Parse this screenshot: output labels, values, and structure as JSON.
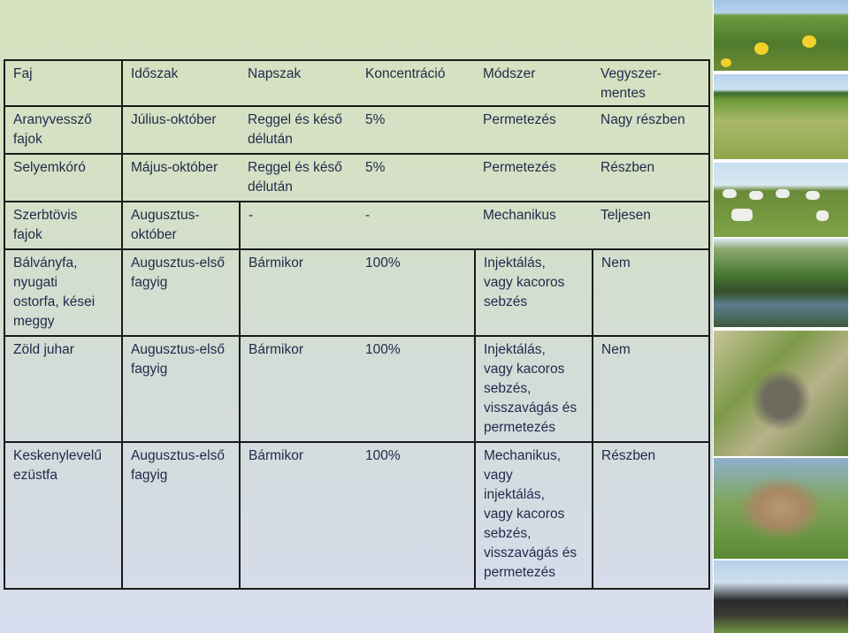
{
  "table": {
    "headers": [
      "Faj",
      "Időszak",
      "Napszak",
      "Koncentráció",
      "Módszer",
      "Vegyszer-\nmentes"
    ],
    "rows": [
      {
        "faj": "Aranyvessző\nfajok",
        "idoszak": "Július-október",
        "napszak": "Reggel és késő\ndélután",
        "koncentracio": "5%",
        "modszer": "Permetezés",
        "vegyszermentes": "Nagy részben"
      },
      {
        "faj": "Selyemkóró",
        "idoszak": "Május-október",
        "napszak": "Reggel és késő\ndélután",
        "koncentracio": "5%",
        "modszer": "Permetezés",
        "vegyszermentes": "Részben"
      },
      {
        "faj": "Szerbtövis\nfajok",
        "idoszak": "Augusztus-\noktóber",
        "napszak": "-",
        "koncentracio": "-",
        "modszer": "Mechanikus",
        "vegyszermentes": "Teljesen"
      },
      {
        "faj": "Bálványfa,\nnyugati\nostorfa, kései\nmeggy",
        "idoszak": "Augusztus-első\nfagyig",
        "napszak": "Bármikor",
        "koncentracio": "100%",
        "modszer": "Injektálás,\nvagy kacoros\nsebzés",
        "vegyszermentes": "Nem"
      },
      {
        "faj": "Zöld juhar",
        "idoszak": "Augusztus-első\nfagyig",
        "napszak": "Bármikor",
        "koncentracio": "100%",
        "modszer": "Injektálás,\nvagy kacoros\nsebzés,\nvisszavágás és\npermetezés",
        "vegyszermentes": "Nem"
      },
      {
        "faj": "Keskenylevelű\nezüstfa",
        "idoszak": "Augusztus-első\nfagyig",
        "napszak": "Bármikor",
        "koncentracio": "100%",
        "modszer": "Mechanikus,\nvagy\ninjektálás,\nvagy kacoros\nsebzés,\nvisszavágás és\npermetezés",
        "vegyszermentes": "Részben"
      }
    ]
  },
  "colors": {
    "text": "#1f2a4a",
    "border": "#1a1a1a",
    "background_top": "#d6e2bf",
    "background_bottom": "#d6dcee"
  },
  "photos": [
    {
      "icon": "yellow-flowers-photo"
    },
    {
      "icon": "grassland-photo"
    },
    {
      "icon": "grey-cattle-herd-photo"
    },
    {
      "icon": "reed-canal-photo"
    },
    {
      "icon": "snake-in-grass-photo"
    },
    {
      "icon": "ground-squirrel-photo"
    },
    {
      "icon": "water-buffalo-photo"
    }
  ]
}
